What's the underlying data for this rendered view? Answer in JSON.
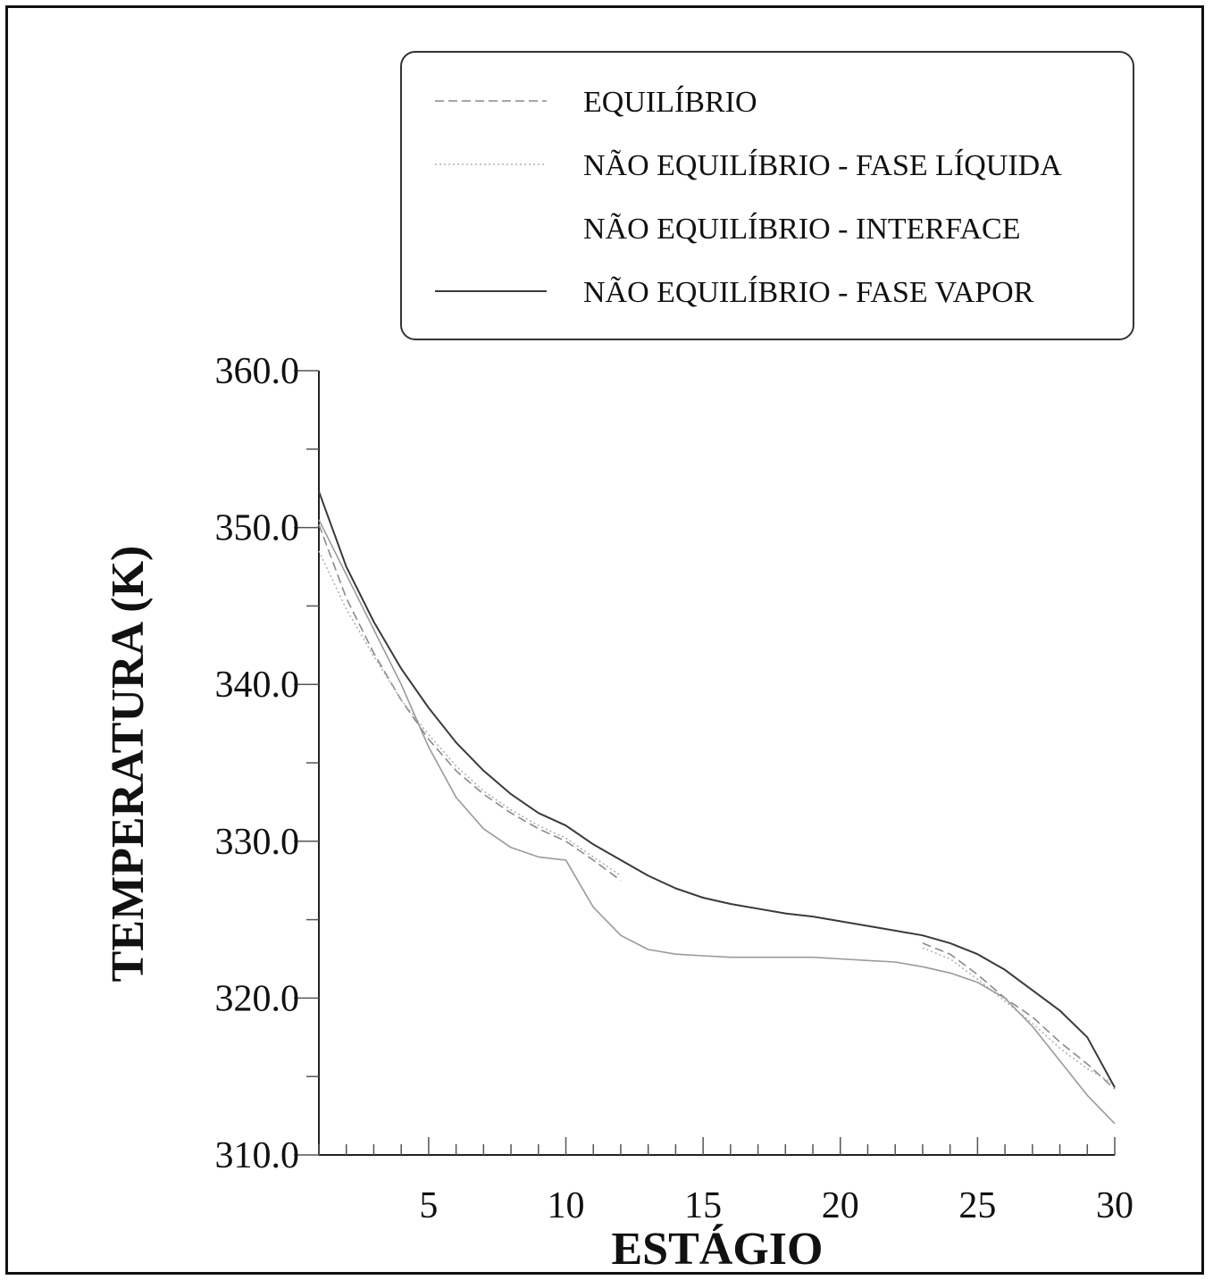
{
  "chart_data": {
    "type": "line",
    "title": "",
    "xlabel": "ESTÁGIO",
    "ylabel": "TEMPERATURA (K)",
    "xlim": [
      1,
      30
    ],
    "ylim": [
      310,
      360
    ],
    "x_ticks": [
      5,
      10,
      15,
      20,
      25,
      30
    ],
    "x_tick_labels": [
      "5",
      "10",
      "15",
      "20",
      "25",
      "30"
    ],
    "y_ticks": [
      310,
      320,
      330,
      340,
      350,
      360
    ],
    "y_tick_labels": [
      "310.0",
      "320.0",
      "330.0",
      "340.0",
      "350.0",
      "360.0"
    ],
    "x_minor_step": 1,
    "y_minor_step": 5,
    "grid": false,
    "legend_position": "top-right",
    "x": [
      1,
      2,
      3,
      4,
      5,
      6,
      7,
      8,
      9,
      10,
      11,
      12,
      13,
      14,
      15,
      16,
      17,
      18,
      19,
      20,
      21,
      22,
      23,
      24,
      25,
      26,
      27,
      28,
      29,
      30
    ],
    "series": [
      {
        "name": "EQUILÍBRIO",
        "style": "dashed",
        "color": "#8a8a8a",
        "values": [
          350.2,
          345.5,
          342.0,
          339.0,
          336.5,
          334.5,
          333.0,
          331.8,
          330.8,
          330.0,
          328.8,
          327.5,
          null,
          null,
          null,
          null,
          null,
          null,
          null,
          null,
          null,
          null,
          323.5,
          322.8,
          321.5,
          320.0,
          318.8,
          317.2,
          315.8,
          314.2
        ]
      },
      {
        "name": "NÃO EQUILÍBRIO - FASE LÍQUIDA",
        "style": "dotted",
        "color": "#b0b0b0",
        "values": [
          348.5,
          344.8,
          341.8,
          339.0,
          336.8,
          334.8,
          333.2,
          332.0,
          331.0,
          330.2,
          329.0,
          327.8,
          null,
          null,
          null,
          null,
          null,
          null,
          null,
          null,
          null,
          null,
          323.2,
          322.5,
          321.2,
          319.8,
          318.4,
          316.8,
          315.5,
          314.5
        ]
      },
      {
        "name": "NÃO EQUILÍBRIO - INTERFACE",
        "style": "solid-light",
        "color": "#9a9a9a",
        "values": [
          350.5,
          347.0,
          343.5,
          340.0,
          336.0,
          332.8,
          330.8,
          329.6,
          329.0,
          328.8,
          325.8,
          324.0,
          323.1,
          322.8,
          322.7,
          322.6,
          322.6,
          322.6,
          322.6,
          322.5,
          322.4,
          322.3,
          322.0,
          321.6,
          321.0,
          320.0,
          318.2,
          316.0,
          313.8,
          312.0
        ]
      },
      {
        "name": "NÃO EQUILÍBRIO - FASE VAPOR",
        "style": "solid",
        "color": "#3a3a3a",
        "values": [
          352.3,
          347.5,
          344.0,
          341.0,
          338.5,
          336.3,
          334.5,
          333.0,
          331.8,
          331.0,
          329.8,
          328.8,
          327.8,
          327.0,
          326.4,
          326.0,
          325.7,
          325.4,
          325.2,
          324.9,
          324.6,
          324.3,
          324.0,
          323.5,
          322.8,
          321.8,
          320.5,
          319.2,
          317.5,
          314.3
        ]
      }
    ]
  }
}
